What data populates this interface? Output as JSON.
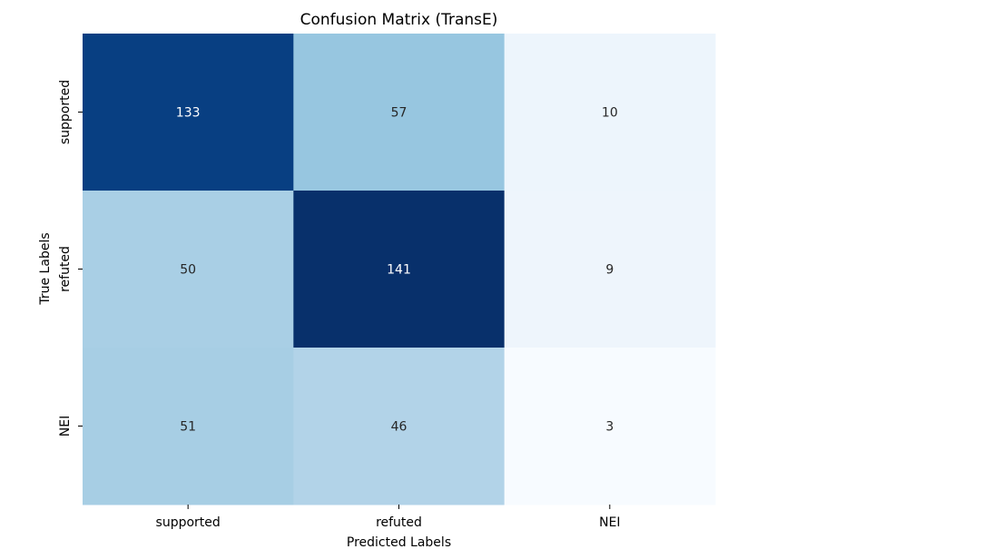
{
  "chart_data": {
    "type": "heatmap",
    "title": "Confusion Matrix (TransE)",
    "xlabel": "Predicted Labels",
    "ylabel": "True Labels",
    "x_categories": [
      "supported",
      "refuted",
      "NEI"
    ],
    "y_categories": [
      "supported",
      "refuted",
      "NEI"
    ],
    "values": [
      [
        133,
        57,
        10
      ],
      [
        50,
        141,
        9
      ],
      [
        51,
        46,
        3
      ]
    ],
    "colormap": "Blues",
    "vmin": 3,
    "vmax": 141,
    "colorbar": false,
    "annotations": true
  }
}
